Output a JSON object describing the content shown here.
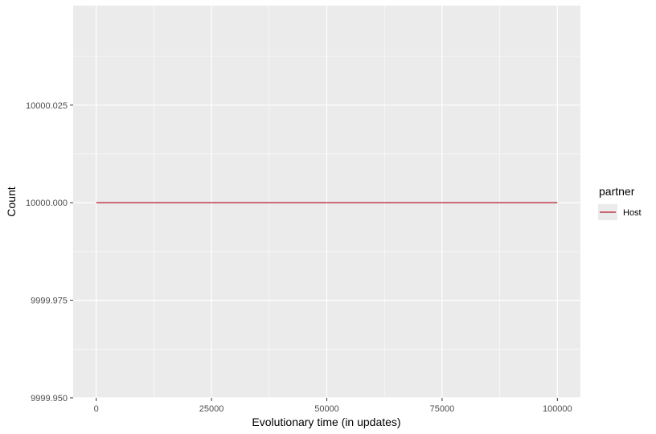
{
  "chart_data": {
    "type": "line",
    "xlabel": "Evolutionary time (in updates)",
    "ylabel": "Count",
    "xlim": [
      -5000,
      105000
    ],
    "ylim": [
      9999.95,
      10000.0505
    ],
    "x_ticks": [
      0,
      25000,
      50000,
      75000,
      100000
    ],
    "x_tick_labels": [
      "0",
      "25000",
      "50000",
      "75000",
      "100000"
    ],
    "y_ticks": [
      9999.95,
      9999.975,
      10000.0,
      10000.025
    ],
    "y_tick_labels": [
      "9999.950",
      "9999.975",
      "10000.000",
      "10000.025"
    ],
    "grid": true,
    "legend": {
      "title": "partner",
      "position": "right",
      "entries": [
        {
          "label": "Host",
          "color": "#b2182b"
        }
      ]
    },
    "series": [
      {
        "name": "Host",
        "color": "#b2182b",
        "x": [
          0,
          100000
        ],
        "y": [
          10000.0,
          10000.0
        ]
      }
    ]
  },
  "colors": {
    "panel_bg": "#ebebeb",
    "grid_major": "#ffffff",
    "legend_key_bg": "#ebebeb"
  }
}
